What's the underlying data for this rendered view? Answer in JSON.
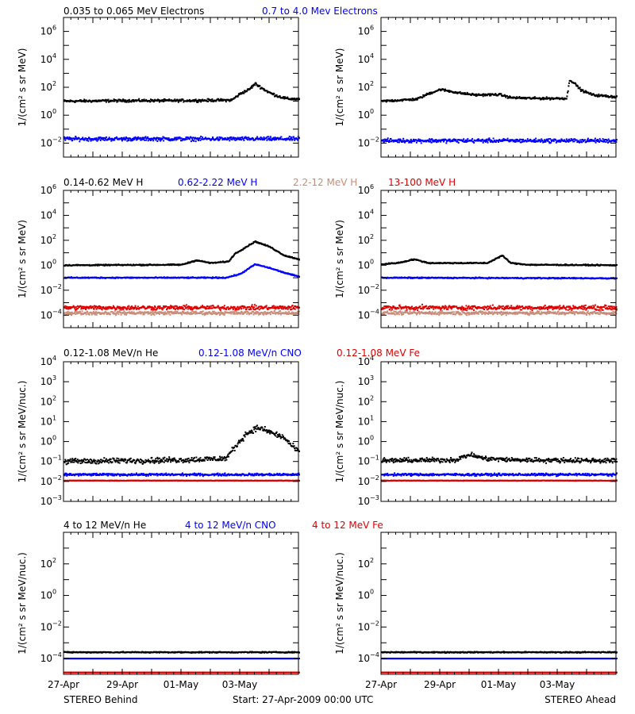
{
  "figure": {
    "footer": {
      "left": "STEREO Behind",
      "center": "Start: 27-Apr-2009 00:00 UTC",
      "right": "STEREO Ahead"
    },
    "x_tick_labels": [
      "27-Apr",
      "29-Apr",
      "01-May",
      "03-May"
    ]
  },
  "rows": [
    {
      "legend": [
        {
          "text": "0.035 to 0.065 MeV Electrons",
          "color": "#000000"
        },
        {
          "text": "0.7 to 4.0 Mev Electrons",
          "color": "#0000ff"
        }
      ],
      "ylabel": "1/(cm² s sr MeV)"
    },
    {
      "legend": [
        {
          "text": "0.14-0.62 MeV H",
          "color": "#000000"
        },
        {
          "text": "0.62-2.22 MeV H",
          "color": "#0000ff"
        },
        {
          "text": "2.2-12 MeV H",
          "color": "#c88c78"
        },
        {
          "text": "13-100 MeV H",
          "color": "#e00000"
        }
      ],
      "ylabel": "1/(cm² s sr MeV)"
    },
    {
      "legend": [
        {
          "text": "0.12-1.08 MeV/n He",
          "color": "#000000"
        },
        {
          "text": "0.12-1.08 MeV/n CNO",
          "color": "#0000ff"
        },
        {
          "text": "0.12-1.08 MeV Fe",
          "color": "#e00000"
        }
      ],
      "ylabel": "1/(cm² s sr MeV/nuc.)"
    },
    {
      "legend": [
        {
          "text": "4 to 12 MeV/n He",
          "color": "#000000"
        },
        {
          "text": "4 to 12 MeV/n CNO",
          "color": "#0000ff"
        },
        {
          "text": "4 to 12 MeV Fe",
          "color": "#e00000"
        }
      ],
      "ylabel": "1/(cm² s sr MeV/nuc.)"
    }
  ],
  "chart_data": [
    {
      "type": "scatter",
      "panel": "STEREO Behind",
      "row": 1,
      "x_unit": "days since 27-Apr-2009",
      "xlim": [
        0,
        8
      ],
      "ylog": true,
      "ylim_exp": [
        -3,
        7
      ],
      "ytick_exps": [
        -2,
        0,
        2,
        4,
        6
      ],
      "series": [
        {
          "name": "0.035 to 0.065 MeV Electrons",
          "color": "#000000",
          "noise": 0.08,
          "x": [
            0,
            2,
            4,
            5.7,
            6.0,
            6.3,
            6.5,
            6.8,
            7.0,
            7.3,
            7.6,
            8
          ],
          "y": [
            10,
            11,
            11,
            12,
            35,
            70,
            180,
            70,
            40,
            22,
            15,
            14
          ]
        },
        {
          "name": "0.7 to 4.0 Mev Electrons",
          "color": "#0000ff",
          "noise": 0.12,
          "x": [
            0,
            8
          ],
          "y": [
            0.02,
            0.02
          ]
        }
      ]
    },
    {
      "type": "scatter",
      "panel": "STEREO Ahead",
      "row": 1,
      "x_unit": "days since 27-Apr-2009",
      "xlim": [
        0,
        8
      ],
      "ylog": true,
      "ylim_exp": [
        -3,
        7
      ],
      "ytick_exps": [
        -2,
        0,
        2,
        4,
        6
      ],
      "series": [
        {
          "name": "0.035 to 0.065 MeV Electrons",
          "color": "#000000",
          "noise": 0.07,
          "x": [
            0,
            1.2,
            1.6,
            2.0,
            2.6,
            3.2,
            4.0,
            4.4,
            5.2,
            6.3,
            6.4,
            6.55,
            6.8,
            7.2,
            8
          ],
          "y": [
            10,
            14,
            35,
            70,
            40,
            28,
            30,
            18,
            16,
            16,
            350,
            200,
            60,
            28,
            20
          ]
        },
        {
          "name": "0.7 to 4.0 Mev Electrons",
          "color": "#0000ff",
          "noise": 0.12,
          "x": [
            0,
            8
          ],
          "y": [
            0.015,
            0.015
          ]
        }
      ]
    },
    {
      "type": "scatter",
      "panel": "STEREO Behind",
      "row": 2,
      "x_unit": "days since 27-Apr-2009",
      "xlim": [
        0,
        8
      ],
      "ylog": true,
      "ylim_exp": [
        -5,
        6
      ],
      "ytick_exps": [
        -4,
        -2,
        0,
        2,
        4,
        6
      ],
      "series": [
        {
          "name": "0.14-0.62 MeV H",
          "color": "#000000",
          "noise": 0.04,
          "x": [
            0,
            4.0,
            4.5,
            5.0,
            5.6,
            5.8,
            6.5,
            7.0,
            7.5,
            8
          ],
          "y": [
            1,
            1.1,
            2.5,
            1.5,
            2,
            8,
            80,
            30,
            6,
            3
          ]
        },
        {
          "name": "0.62-2.22 MeV H",
          "color": "#0000ff",
          "noise": 0.04,
          "x": [
            0,
            5.5,
            6.0,
            6.5,
            7.0,
            7.5,
            8
          ],
          "y": [
            0.1,
            0.1,
            0.2,
            1.2,
            0.6,
            0.25,
            0.12
          ]
        },
        {
          "name": "2.2-12 MeV H",
          "color": "#c88c78",
          "noise": 0.12,
          "x": [
            0,
            8
          ],
          "y": [
            0.00015,
            0.00015
          ]
        },
        {
          "name": "13-100 MeV H",
          "color": "#e00000",
          "noise": 0.15,
          "x": [
            0,
            8
          ],
          "y": [
            0.0004,
            0.0004
          ]
        }
      ]
    },
    {
      "type": "scatter",
      "panel": "STEREO Ahead",
      "row": 2,
      "x_unit": "days since 27-Apr-2009",
      "xlim": [
        0,
        8
      ],
      "ylog": true,
      "ylim_exp": [
        -5,
        6
      ],
      "ytick_exps": [
        -4,
        -2,
        0,
        2,
        4,
        6
      ],
      "series": [
        {
          "name": "0.14-0.62 MeV H",
          "color": "#000000",
          "noise": 0.04,
          "x": [
            0,
            0.6,
            1.1,
            1.6,
            3.6,
            3.9,
            4.1,
            4.4,
            5,
            8
          ],
          "y": [
            1.2,
            1.6,
            3,
            1.5,
            1.5,
            3.5,
            6,
            1.5,
            1.1,
            1
          ]
        },
        {
          "name": "0.62-2.22 MeV H",
          "color": "#0000ff",
          "noise": 0.04,
          "x": [
            0,
            8
          ],
          "y": [
            0.1,
            0.09
          ]
        },
        {
          "name": "2.2-12 MeV H",
          "color": "#c88c78",
          "noise": 0.12,
          "x": [
            0,
            8
          ],
          "y": [
            0.00015,
            0.00015
          ]
        },
        {
          "name": "13-100 MeV H",
          "color": "#e00000",
          "noise": 0.15,
          "x": [
            0,
            8
          ],
          "y": [
            0.0004,
            0.0004
          ]
        }
      ]
    },
    {
      "type": "scatter",
      "panel": "STEREO Behind",
      "row": 3,
      "x_unit": "days since 27-Apr-2009",
      "xlim": [
        0,
        8
      ],
      "ylog": true,
      "ylim_exp": [
        -3,
        4
      ],
      "ytick_exps": [
        -3,
        -2,
        -1,
        0,
        1,
        2,
        3,
        4
      ],
      "series": [
        {
          "name": "0.12-1.08 MeV/n He",
          "color": "#000000",
          "noise": 0.12,
          "x": [
            0,
            4.0,
            5.5,
            5.8,
            6.2,
            6.6,
            7.0,
            7.5,
            7.8,
            8
          ],
          "y": [
            0.1,
            0.12,
            0.14,
            0.5,
            2.5,
            5,
            3,
            1.5,
            0.5,
            0.3
          ]
        },
        {
          "name": "0.12-1.08 MeV/n CNO",
          "color": "#0000ff",
          "noise": 0.05,
          "x": [
            0,
            8
          ],
          "y": [
            0.022,
            0.022
          ]
        },
        {
          "name": "0.12-1.08 MeV Fe",
          "color": "#e00000",
          "noise": 0.01,
          "x": [
            0,
            8
          ],
          "y": [
            0.011,
            0.011
          ]
        }
      ]
    },
    {
      "type": "scatter",
      "panel": "STEREO Ahead",
      "row": 3,
      "x_unit": "days since 27-Apr-2009",
      "xlim": [
        0,
        8
      ],
      "ylog": true,
      "ylim_exp": [
        -3,
        4
      ],
      "ytick_exps": [
        -3,
        -2,
        -1,
        0,
        1,
        2,
        3,
        4
      ],
      "series": [
        {
          "name": "0.12-1.08 MeV/n He",
          "color": "#000000",
          "noise": 0.1,
          "x": [
            0,
            2.5,
            3.0,
            3.5,
            4.5,
            8
          ],
          "y": [
            0.11,
            0.12,
            0.22,
            0.14,
            0.12,
            0.11
          ]
        },
        {
          "name": "0.12-1.08 MeV/n CNO",
          "color": "#0000ff",
          "noise": 0.05,
          "x": [
            0,
            8
          ],
          "y": [
            0.022,
            0.022
          ]
        },
        {
          "name": "0.12-1.08 MeV Fe",
          "color": "#e00000",
          "noise": 0.01,
          "x": [
            0,
            8
          ],
          "y": [
            0.011,
            0.011
          ]
        }
      ]
    },
    {
      "type": "scatter",
      "panel": "STEREO Behind",
      "row": 4,
      "x_unit": "days since 27-Apr-2009",
      "xlim": [
        0,
        8
      ],
      "ylog": true,
      "ylim_exp": [
        -5,
        4
      ],
      "ytick_exps": [
        -4,
        -2,
        0,
        2
      ],
      "series": [
        {
          "name": "4 to 12 MeV/n He",
          "color": "#000000",
          "noise": 0.03,
          "x": [
            0,
            8
          ],
          "y": [
            0.00025,
            0.00025
          ]
        },
        {
          "name": "4 to 12 MeV/n CNO",
          "color": "#0000ff",
          "noise": 0.0,
          "x": [
            0,
            8
          ],
          "y": [
            0.0001,
            0.0001
          ]
        },
        {
          "name": "4 to 12 MeV Fe",
          "color": "#e00000",
          "noise": 0.0,
          "x": [
            0,
            8
          ],
          "y": [
            1.3e-05,
            1.3e-05
          ]
        }
      ]
    },
    {
      "type": "scatter",
      "panel": "STEREO Ahead",
      "row": 4,
      "x_unit": "days since 27-Apr-2009",
      "xlim": [
        0,
        8
      ],
      "ylog": true,
      "ylim_exp": [
        -5,
        4
      ],
      "ytick_exps": [
        -4,
        -2,
        0,
        2
      ],
      "series": [
        {
          "name": "4 to 12 MeV/n He",
          "color": "#000000",
          "noise": 0.03,
          "x": [
            0,
            8
          ],
          "y": [
            0.00025,
            0.00025
          ]
        },
        {
          "name": "4 to 12 MeV/n CNO",
          "color": "#0000ff",
          "noise": 0.0,
          "x": [
            0,
            8
          ],
          "y": [
            0.0001,
            0.0001
          ]
        },
        {
          "name": "4 to 12 MeV Fe",
          "color": "#e00000",
          "noise": 0.0,
          "x": [
            0,
            8
          ],
          "y": [
            1.3e-05,
            1.3e-05
          ]
        }
      ]
    }
  ]
}
